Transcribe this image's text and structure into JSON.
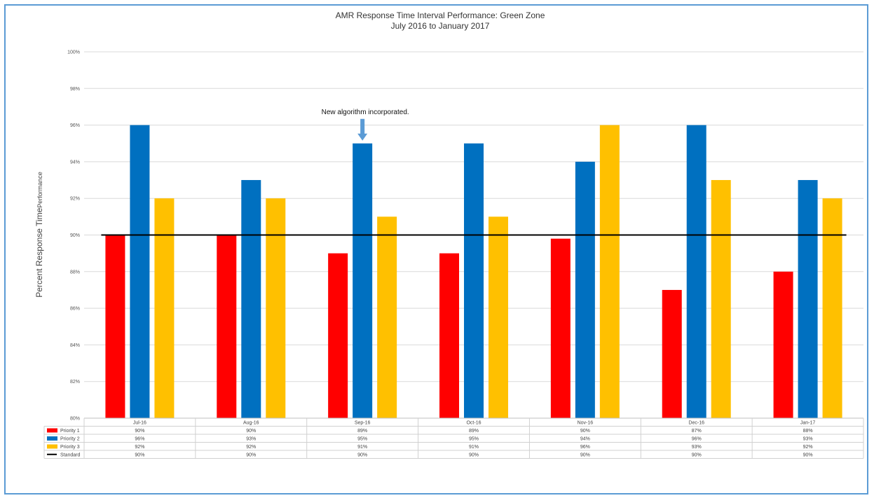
{
  "chart_data": {
    "type": "bar",
    "title": "AMR Response Time Interval Performance: Green Zone",
    "subtitle": "July 2016 to January 2017",
    "ylabel_main": "Percent Response Time",
    "ylabel_small": "Performance",
    "ylim": [
      80,
      100
    ],
    "y_ticks": [
      "80%",
      "82%",
      "84%",
      "86%",
      "88%",
      "90%",
      "92%",
      "94%",
      "96%",
      "98%",
      "100%"
    ],
    "grid": true,
    "categories": [
      "Jul-16",
      "Aug-16",
      "Sep-16",
      "Oct-16",
      "Nov-16",
      "Dec-16",
      "Jan-17"
    ],
    "series": [
      {
        "name": "Priority 1",
        "color": "#ff0000",
        "values": [
          90,
          90,
          89,
          89,
          89.8,
          87,
          88
        ],
        "labels": [
          "90%",
          "90%",
          "89%",
          "89%",
          "90%",
          "87%",
          "88%"
        ]
      },
      {
        "name": "Priority 2",
        "color": "#0070c0",
        "values": [
          96,
          93,
          95,
          95,
          94,
          96,
          93
        ],
        "labels": [
          "96%",
          "93%",
          "95%",
          "95%",
          "94%",
          "96%",
          "93%"
        ]
      },
      {
        "name": "Priority 3",
        "color": "#ffc000",
        "values": [
          92,
          92,
          91,
          91,
          96,
          93,
          92
        ],
        "labels": [
          "92%",
          "92%",
          "91%",
          "91%",
          "96%",
          "93%",
          "92%"
        ]
      }
    ],
    "standard": {
      "name": "Standard",
      "color": "#000000",
      "value": 90,
      "labels": [
        "90%",
        "90%",
        "90%",
        "90%",
        "90%",
        "90%",
        "90%"
      ]
    },
    "annotation": {
      "text": "New algorithm incorporated.",
      "category": "Sep-16",
      "series": "Priority 2",
      "arrow_color": "#5b9bd5"
    }
  }
}
